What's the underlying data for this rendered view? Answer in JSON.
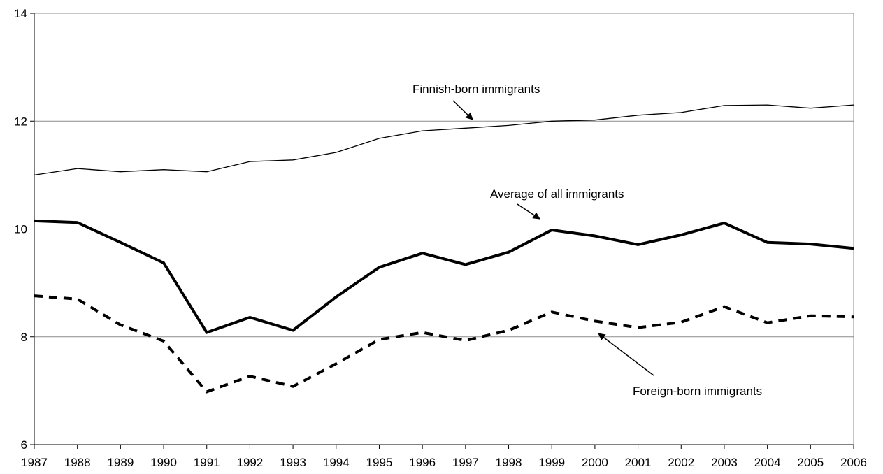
{
  "chart_data": {
    "type": "line",
    "title": "",
    "xlabel": "",
    "ylabel": "",
    "x": [
      "1987",
      "1988",
      "1989",
      "1990",
      "1991",
      "1992",
      "1993",
      "1994",
      "1995",
      "1996",
      "1997",
      "1998",
      "1999",
      "2000",
      "2001",
      "2002",
      "2003",
      "2004",
      "2005",
      "2006"
    ],
    "ylim": [
      6,
      14
    ],
    "yticks": [
      "6",
      "8",
      "10",
      "12",
      "14"
    ],
    "grid": "horizontal",
    "series": [
      {
        "name": "Finnish-born immigrants",
        "style": "thin-solid",
        "color": "#000000",
        "values": [
          11.0,
          11.12,
          11.06,
          11.1,
          11.06,
          11.25,
          11.28,
          11.42,
          11.68,
          11.82,
          11.87,
          11.92,
          12.0,
          12.02,
          12.11,
          12.16,
          12.29,
          12.3,
          12.24,
          12.3
        ]
      },
      {
        "name": "Average of all immigrants",
        "style": "thick-solid",
        "color": "#000000",
        "values": [
          10.15,
          10.12,
          9.75,
          9.37,
          8.08,
          8.36,
          8.12,
          8.74,
          9.29,
          9.55,
          9.34,
          9.57,
          9.98,
          9.87,
          9.71,
          9.89,
          10.11,
          9.75,
          9.72,
          9.64
        ]
      },
      {
        "name": "Foreign-born immigrants",
        "style": "thick-dashed",
        "color": "#000000",
        "values": [
          8.76,
          8.7,
          8.22,
          7.92,
          6.98,
          7.27,
          7.08,
          7.5,
          7.95,
          8.08,
          7.93,
          8.12,
          8.46,
          8.29,
          8.17,
          8.27,
          8.56,
          8.26,
          8.39,
          8.37
        ]
      }
    ],
    "annotations": [
      {
        "text": "Finnish-born immigrants",
        "series": 0
      },
      {
        "text": "Average of all immigrants",
        "series": 1
      },
      {
        "text": "Foreign-born immigrants",
        "series": 2
      }
    ]
  }
}
